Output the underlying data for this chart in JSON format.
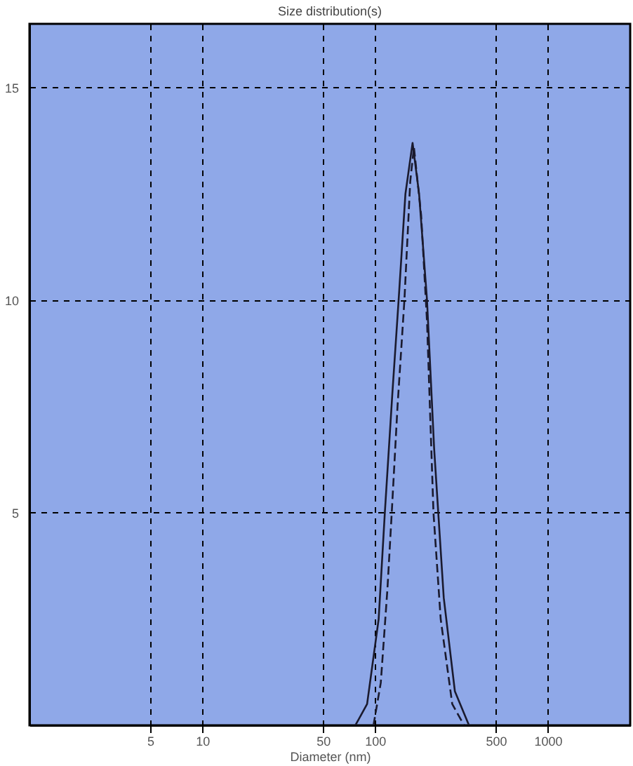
{
  "chart_data": {
    "type": "line",
    "title": "Size distribution(s)",
    "xlabel": "Diameter (nm)",
    "log": "x",
    "xlim": [
      1,
      3000
    ],
    "xticks": [
      5,
      10,
      50,
      100,
      500,
      1000
    ],
    "ylim": [
      0,
      16.5
    ],
    "yticks": [
      5,
      10,
      15
    ],
    "grid": true,
    "marker": "none",
    "series": [
      {
        "color": "#1a1a2e",
        "line_style": "solid",
        "x": [
          77,
          90,
          105,
          114,
          126,
          137,
          150,
          165,
          180,
          200,
          220,
          250,
          290,
          350
        ],
        "values": [
          0,
          0.5,
          2.5,
          5,
          7.8,
          10,
          12.5,
          13.7,
          12.5,
          10,
          6.5,
          3,
          0.8,
          0
        ]
      },
      {
        "color": "#1a1a2e",
        "line_style": "dashed",
        "x": [
          98,
          108,
          118,
          125,
          135,
          148,
          160,
          168,
          185,
          200,
          218,
          240,
          280,
          328
        ],
        "values": [
          0,
          1,
          3.2,
          5,
          7.5,
          10,
          12.8,
          13.6,
          12,
          9.5,
          5,
          2.5,
          0.5,
          0
        ]
      }
    ]
  }
}
